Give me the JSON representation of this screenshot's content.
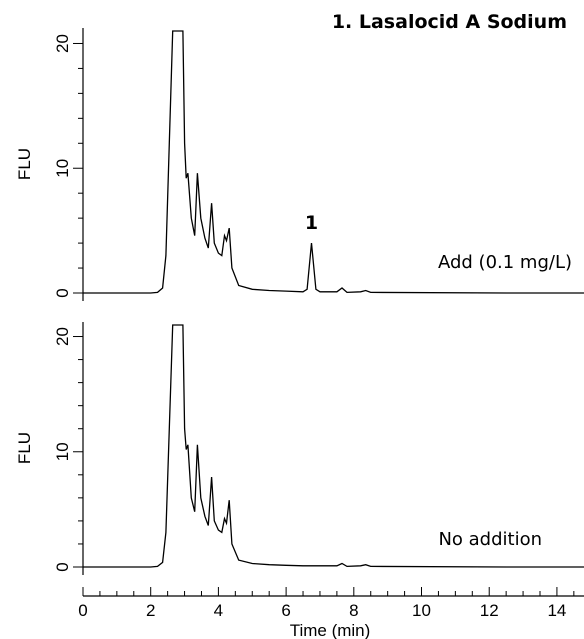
{
  "chart_data": {
    "type": "line",
    "title": "1. Lasalocid A Sodium",
    "xlabel": "Time (min)",
    "ylabel": "FLU",
    "xlim": [
      0,
      14.8
    ],
    "ylim": [
      0,
      21
    ],
    "xticks": [
      "0",
      "2",
      "4",
      "6",
      "8",
      "10",
      "12",
      "14"
    ],
    "yticks": [
      "0",
      "10",
      "20"
    ],
    "peak_label": "1",
    "peak_time": 6.75,
    "panels": [
      {
        "name": "Add (0.1 mg/L)",
        "points": [
          [
            0,
            0
          ],
          [
            2,
            0
          ],
          [
            2.2,
            0.05
          ],
          [
            2.35,
            0.4
          ],
          [
            2.45,
            3
          ],
          [
            2.55,
            12
          ],
          [
            2.65,
            21
          ],
          [
            2.95,
            21
          ],
          [
            3.0,
            12
          ],
          [
            3.05,
            9.2
          ],
          [
            3.1,
            9.6
          ],
          [
            3.2,
            6
          ],
          [
            3.3,
            4.6
          ],
          [
            3.38,
            9.6
          ],
          [
            3.48,
            6
          ],
          [
            3.6,
            4.4
          ],
          [
            3.7,
            3.6
          ],
          [
            3.8,
            7.2
          ],
          [
            3.88,
            4
          ],
          [
            4.0,
            3.2
          ],
          [
            4.1,
            3.0
          ],
          [
            4.18,
            4.6
          ],
          [
            4.24,
            4.2
          ],
          [
            4.32,
            5.2
          ],
          [
            4.4,
            2
          ],
          [
            4.6,
            0.6
          ],
          [
            5.0,
            0.3
          ],
          [
            5.5,
            0.2
          ],
          [
            6.0,
            0.15
          ],
          [
            6.5,
            0.1
          ],
          [
            6.62,
            0.3
          ],
          [
            6.75,
            4.0
          ],
          [
            6.88,
            0.3
          ],
          [
            7.0,
            0.1
          ],
          [
            7.5,
            0.1
          ],
          [
            7.65,
            0.4
          ],
          [
            7.8,
            0.05
          ],
          [
            8.2,
            0.1
          ],
          [
            8.35,
            0.2
          ],
          [
            8.5,
            0.05
          ],
          [
            12.5,
            0
          ],
          [
            14.8,
            0
          ]
        ]
      },
      {
        "name": "No addition",
        "points": [
          [
            0,
            0
          ],
          [
            2,
            0
          ],
          [
            2.2,
            0.05
          ],
          [
            2.35,
            0.4
          ],
          [
            2.45,
            3
          ],
          [
            2.55,
            12
          ],
          [
            2.65,
            21
          ],
          [
            2.95,
            21
          ],
          [
            3.0,
            12
          ],
          [
            3.05,
            10.2
          ],
          [
            3.1,
            10.6
          ],
          [
            3.2,
            6
          ],
          [
            3.3,
            4.8
          ],
          [
            3.38,
            10.6
          ],
          [
            3.48,
            6
          ],
          [
            3.6,
            4.4
          ],
          [
            3.7,
            3.6
          ],
          [
            3.8,
            7.8
          ],
          [
            3.88,
            4
          ],
          [
            4.0,
            3.2
          ],
          [
            4.1,
            3.0
          ],
          [
            4.18,
            4.2
          ],
          [
            4.24,
            3.8
          ],
          [
            4.32,
            5.8
          ],
          [
            4.4,
            2
          ],
          [
            4.6,
            0.6
          ],
          [
            5.0,
            0.3
          ],
          [
            5.5,
            0.2
          ],
          [
            6.0,
            0.15
          ],
          [
            6.5,
            0.1
          ],
          [
            6.75,
            0.1
          ],
          [
            7.0,
            0.1
          ],
          [
            7.5,
            0.1
          ],
          [
            7.65,
            0.3
          ],
          [
            7.8,
            0.05
          ],
          [
            8.2,
            0.1
          ],
          [
            8.35,
            0.2
          ],
          [
            8.5,
            0.05
          ],
          [
            12.5,
            0
          ],
          [
            14.8,
            0
          ]
        ]
      }
    ]
  }
}
